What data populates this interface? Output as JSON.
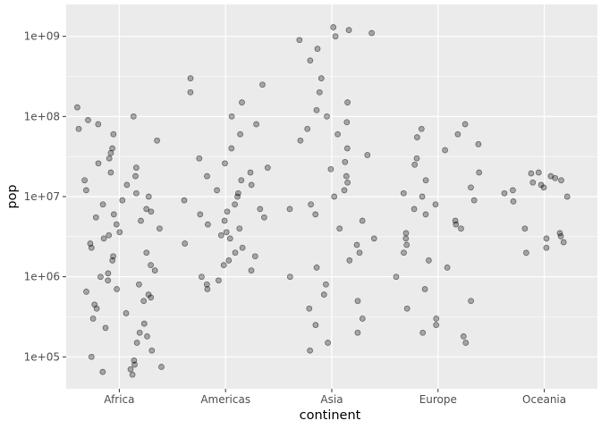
{
  "chart_data": {
    "type": "scatter",
    "jitter": true,
    "xlabel": "continent",
    "ylabel": "pop",
    "y_scale": "log10",
    "ylim": [
      40000,
      2500000000
    ],
    "categories": [
      "Africa",
      "Americas",
      "Asia",
      "Europe",
      "Oceania"
    ],
    "y_ticks": [
      {
        "value": 100000,
        "label": "1e+05"
      },
      {
        "value": 1000000,
        "label": "1e+06"
      },
      {
        "value": 10000000,
        "label": "1e+07"
      },
      {
        "value": 100000000,
        "label": "1e+08"
      },
      {
        "value": 1000000000,
        "label": "1e+09"
      }
    ],
    "point_style": {
      "fill": "#000000",
      "fill_opacity": 0.3,
      "stroke": "#000000",
      "stroke_opacity": 0.55
    },
    "panel_background": "#ebebeb",
    "grid": true,
    "series": [
      {
        "category": "Africa",
        "values": [
          60000,
          65000,
          70000,
          75000,
          80000,
          90000,
          100000,
          120000,
          150000,
          180000,
          200000,
          230000,
          260000,
          300000,
          350000,
          400000,
          450000,
          500000,
          550000,
          600000,
          650000,
          700000,
          800000,
          900000,
          1000000,
          1100000,
          1200000,
          1400000,
          1600000,
          1800000,
          2000000,
          2300000,
          2600000,
          3000000,
          3300000,
          3600000,
          4000000,
          4500000,
          5000000,
          5500000,
          6000000,
          6500000,
          7000000,
          8000000,
          9000000,
          10000000,
          11000000,
          12000000,
          14000000,
          16000000,
          18000000,
          20000000,
          23000000,
          26000000,
          30000000,
          35000000,
          40000000,
          50000000,
          60000000,
          70000000,
          80000000,
          90000000,
          100000000,
          130000000
        ]
      },
      {
        "category": "Americas",
        "values": [
          700000,
          800000,
          900000,
          1000000,
          1200000,
          1400000,
          1600000,
          1800000,
          2000000,
          2300000,
          2600000,
          3000000,
          3300000,
          3600000,
          4000000,
          4500000,
          5000000,
          5500000,
          6000000,
          6500000,
          7000000,
          8000000,
          9000000,
          10000000,
          11000000,
          12000000,
          14000000,
          16000000,
          18000000,
          20000000,
          23000000,
          26000000,
          30000000,
          40000000,
          60000000,
          80000000,
          100000000,
          150000000,
          200000000,
          250000000,
          300000000
        ]
      },
      {
        "category": "Asia",
        "values": [
          120000,
          150000,
          200000,
          250000,
          300000,
          400000,
          500000,
          600000,
          800000,
          1000000,
          1300000,
          1600000,
          2000000,
          2500000,
          3000000,
          4000000,
          5000000,
          6000000,
          7000000,
          8000000,
          10000000,
          12000000,
          15000000,
          18000000,
          22000000,
          27000000,
          33000000,
          40000000,
          50000000,
          60000000,
          70000000,
          85000000,
          100000000,
          120000000,
          150000000,
          200000000,
          300000000,
          500000000,
          700000000,
          900000000,
          1000000000,
          1100000000,
          1200000000,
          1300000000
        ]
      },
      {
        "category": "Europe",
        "values": [
          150000,
          180000,
          200000,
          250000,
          300000,
          400000,
          500000,
          700000,
          1000000,
          1300000,
          1600000,
          2000000,
          2500000,
          3000000,
          3500000,
          4000000,
          4500000,
          5000000,
          6000000,
          7000000,
          8000000,
          9000000,
          10000000,
          11000000,
          13000000,
          16000000,
          20000000,
          25000000,
          30000000,
          38000000,
          45000000,
          55000000,
          60000000,
          70000000,
          80000000
        ]
      },
      {
        "category": "Oceania",
        "values": [
          1990000,
          2300000,
          2700000,
          3000000,
          3200000,
          3500000,
          4000000,
          8700000,
          10000000,
          11000000,
          12000000,
          13000000,
          14000000,
          15000000,
          16000000,
          17000000,
          18000000,
          19500000,
          20000000
        ]
      }
    ]
  }
}
